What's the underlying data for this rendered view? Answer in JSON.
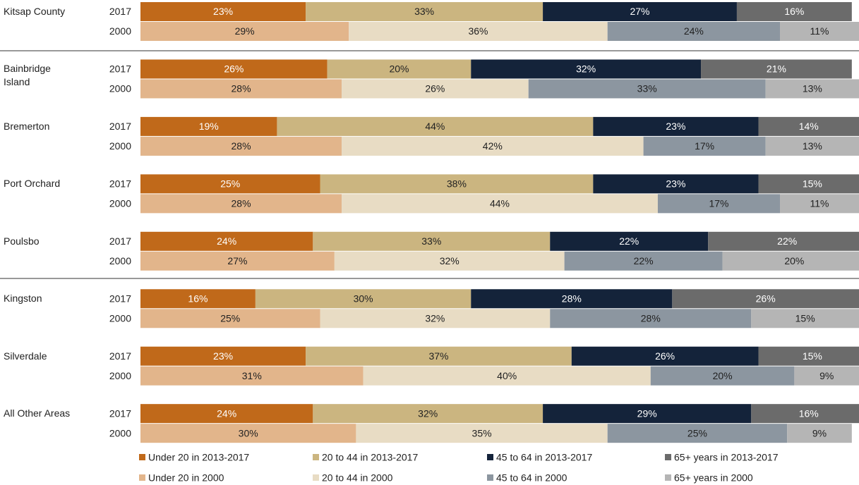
{
  "chart_data": {
    "type": "bar",
    "stacked": true,
    "orientation": "horizontal",
    "xlim": [
      0,
      100
    ],
    "categories": [
      "Kitsap County",
      "Bainbridge Island",
      "Bremerton",
      "Port Orchard",
      "Poulsbo",
      "Kingston",
      "Silverdale",
      "All Other Areas"
    ],
    "bars": [
      {
        "label": "2017",
        "series": [
          {
            "name": "Under 20 in 2013-2017",
            "color": "#c0691a",
            "label_color": "#ffffff",
            "values": [
              23,
              26,
              19,
              25,
              24,
              16,
              23,
              24
            ],
            "value_labels": [
              "23%",
              "26%",
              "19%",
              "25%",
              "24%",
              "16%",
              "23%",
              "24%"
            ]
          },
          {
            "name": "20 to 44 in 2013-2017",
            "color": "#cbb580",
            "label_color": "#222222",
            "values": [
              33,
              20,
              44,
              38,
              33,
              30,
              37,
              32
            ],
            "value_labels": [
              "33%",
              "20%",
              "44%",
              "38%",
              "33%",
              "30%",
              "37%",
              "32%"
            ]
          },
          {
            "name": "45 to 64 in 2013-2017",
            "color": "#14233a",
            "label_color": "#ffffff",
            "values": [
              27,
              32,
              23,
              23,
              22,
              28,
              26,
              29
            ],
            "value_labels": [
              "27%",
              "32%",
              "23%",
              "23%",
              "22%",
              "28%",
              "26%",
              "29%"
            ]
          },
          {
            "name": "65+ years in 2013-2017",
            "color": "#6b6b6b",
            "label_color": "#ffffff",
            "values": [
              16,
              21,
              14,
              15,
              22,
              26,
              15,
              16
            ],
            "value_labels": [
              "16%",
              "21%",
              "14%",
              "15%",
              "22%",
              "26%",
              "15%",
              "16%"
            ]
          }
        ]
      },
      {
        "label": "2000",
        "series": [
          {
            "name": "Under 20 in 2000",
            "color": "#e2b58b",
            "label_color": "#222222",
            "values": [
              29,
              28,
              28,
              28,
              27,
              25,
              31,
              30
            ],
            "value_labels": [
              "29%",
              "28%",
              "28%",
              "28%",
              "27%",
              "25%",
              "31%",
              "30%"
            ]
          },
          {
            "name": "20 to 44 in 2000",
            "color": "#e8dcc4",
            "label_color": "#222222",
            "values": [
              36,
              26,
              42,
              44,
              32,
              32,
              40,
              35
            ],
            "value_labels": [
              "36%",
              "26%",
              "42%",
              "44%",
              "32%",
              "32%",
              "40%",
              "35%"
            ]
          },
          {
            "name": "45 to 64 in 2000",
            "color": "#8c96a0",
            "label_color": "#222222",
            "values": [
              24,
              33,
              17,
              17,
              22,
              28,
              20,
              25
            ],
            "value_labels": [
              "24%",
              "33%",
              "17%",
              "17%",
              "22%",
              "28%",
              "20%",
              "25%"
            ]
          },
          {
            "name": "65+ years in 2000",
            "color": "#b5b5b5",
            "label_color": "#222222",
            "values": [
              11,
              13,
              13,
              11,
              20,
              15,
              9,
              9
            ],
            "value_labels": [
              "11%",
              "13%",
              "13%",
              "11%",
              "20%",
              "15%",
              "9%",
              "9%"
            ]
          }
        ]
      }
    ]
  }
}
